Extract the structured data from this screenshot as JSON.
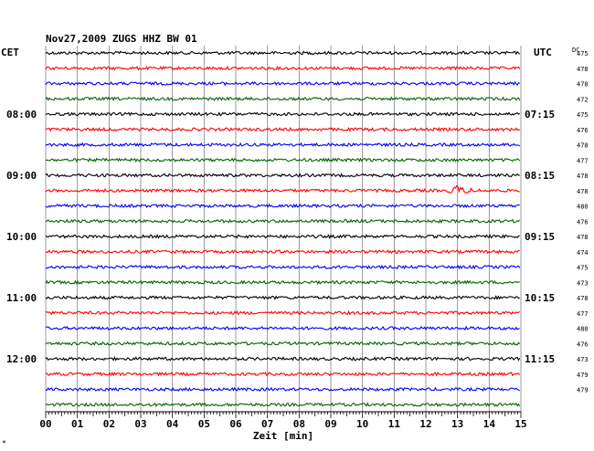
{
  "chart_data": {
    "type": "line",
    "title": "Nov27,2009   ZUGS HHZ BW 01",
    "left_zone_label": "CET",
    "right_zone_label": "UTC",
    "dc_header": "DC",
    "xlabel": "Zeit [min]",
    "xlim": [
      0,
      15
    ],
    "x_ticks": [
      "00",
      "01",
      "02",
      "03",
      "04",
      "05",
      "06",
      "07",
      "08",
      "09",
      "10",
      "11",
      "12",
      "13",
      "14",
      "15"
    ],
    "trace_colors": [
      "#000000",
      "#ff0000",
      "#0000ff",
      "#006400"
    ],
    "traces_per_hour": 4,
    "trace_count": 24,
    "left_hour_labels": [
      {
        "trace": 4,
        "text": "08:00"
      },
      {
        "trace": 8,
        "text": "09:00"
      },
      {
        "trace": 12,
        "text": "10:00"
      },
      {
        "trace": 16,
        "text": "11:00"
      },
      {
        "trace": 20,
        "text": "12:00"
      }
    ],
    "right_hour_labels": [
      {
        "trace": 4,
        "text": "07:15"
      },
      {
        "trace": 8,
        "text": "08:15"
      },
      {
        "trace": 12,
        "text": "09:15"
      },
      {
        "trace": 16,
        "text": "10:15"
      },
      {
        "trace": 20,
        "text": "11:15"
      }
    ],
    "dc_values": [
      "475",
      "478",
      "478",
      "472",
      "475",
      "476",
      "478",
      "477",
      "478",
      "478",
      "480",
      "476",
      "478",
      "474",
      "475",
      "473",
      "478",
      "477",
      "480",
      "476",
      "473",
      "479",
      "479"
    ],
    "events": [
      {
        "trace": 9,
        "minute": 13.0,
        "description": "small local burst"
      }
    ]
  },
  "corner_mark": "*"
}
